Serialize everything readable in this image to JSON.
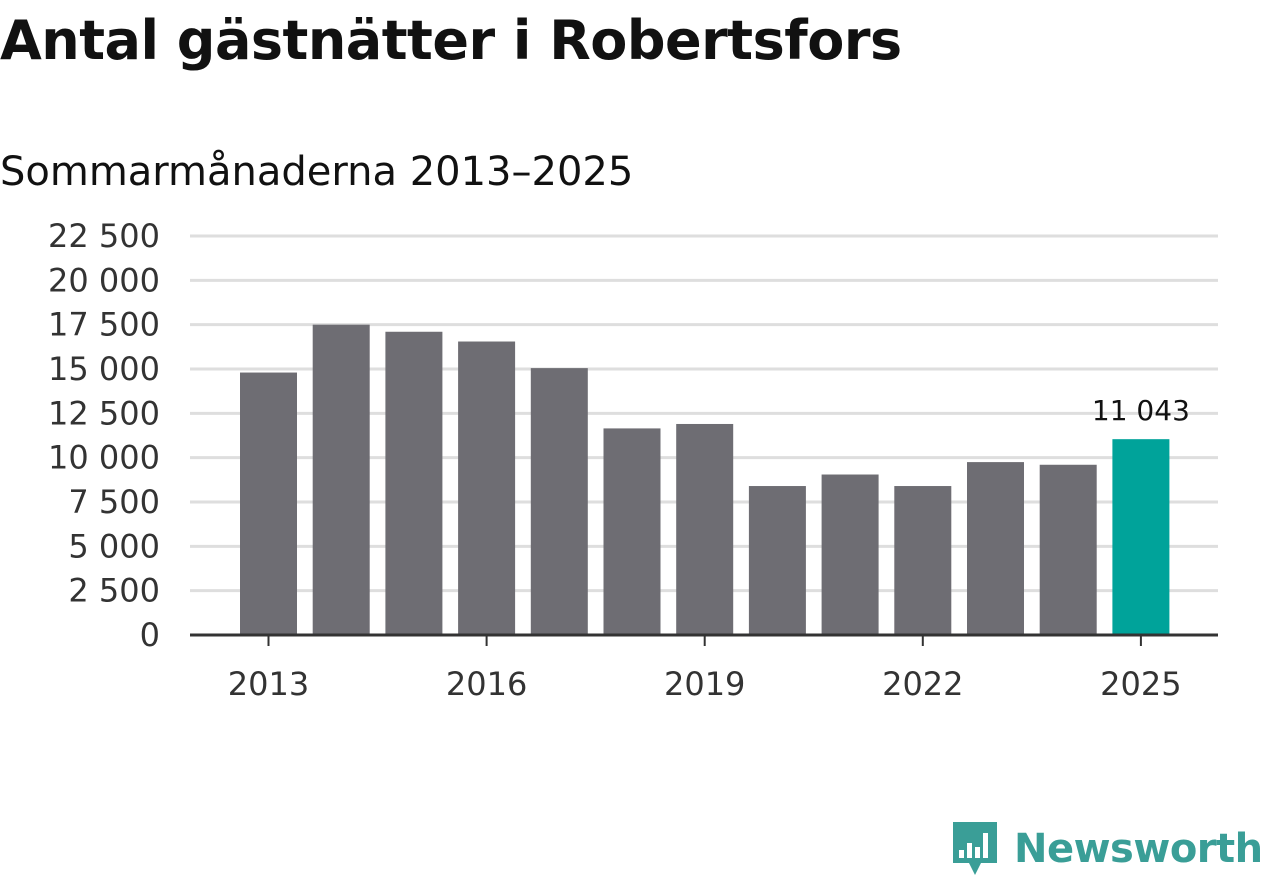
{
  "title": "Antal gästnätter i Robertsfors",
  "subtitle": "Sommarmånaderna 2013–2025",
  "brand": "Newsworthy",
  "colors": {
    "bar": "#6e6d73",
    "highlight": "#00a39a",
    "grid": "#dedede",
    "axis": "#333333",
    "brand": "#3a9e97"
  },
  "chart_data": {
    "type": "bar",
    "categories": [
      "2013",
      "2014",
      "2015",
      "2016",
      "2017",
      "2018",
      "2019",
      "2020",
      "2021",
      "2022",
      "2023",
      "2024",
      "2025"
    ],
    "values": [
      14800,
      17500,
      17100,
      16550,
      15050,
      11650,
      11900,
      8400,
      9050,
      8400,
      9750,
      9600,
      11043
    ],
    "highlight_index": 12,
    "data_labels": [
      {
        "index": 12,
        "text": "11 043"
      }
    ],
    "x_tick_labels": [
      "2013",
      "2016",
      "2019",
      "2022",
      "2025"
    ],
    "x_tick_indices": [
      0,
      3,
      6,
      9,
      12
    ],
    "y_ticks": [
      0,
      2500,
      5000,
      7500,
      10000,
      12500,
      15000,
      17500,
      20000,
      22500
    ],
    "y_tick_labels": [
      "0",
      "2 500",
      "5 000",
      "7 500",
      "10 000",
      "12 500",
      "15 000",
      "17 500",
      "20 000",
      "22 500"
    ],
    "ylim": [
      0,
      22500
    ],
    "grid": true,
    "xlabel": "",
    "ylabel": ""
  }
}
